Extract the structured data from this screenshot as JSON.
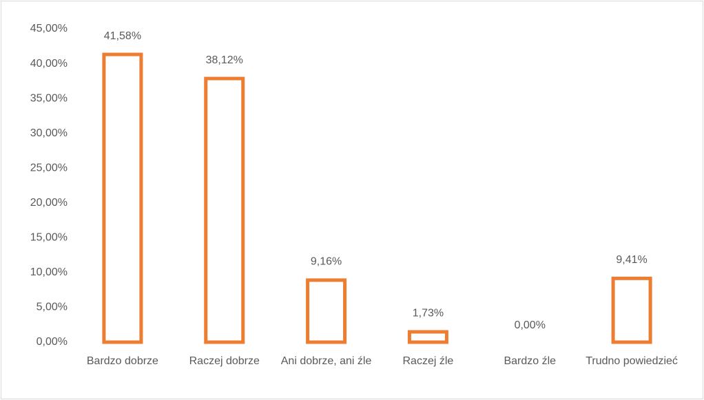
{
  "chart_data": {
    "type": "bar",
    "categories": [
      "Bardzo dobrze",
      "Raczej dobrze",
      "Ani dobrze, ani źle",
      "Raczej źle",
      "Bardzo źle",
      "Trudno powiedzieć"
    ],
    "values": [
      41.58,
      38.12,
      9.16,
      1.73,
      0,
      9.41
    ],
    "value_labels": [
      "41,58%",
      "38,12%",
      "9,16%",
      "1,73%",
      "0,00%",
      "9,41%"
    ],
    "color": "#ed7d31",
    "ylim": [
      0,
      45
    ],
    "yticks": [
      {
        "value": 0,
        "label": "0,00%"
      },
      {
        "value": 5,
        "label": "5,00%"
      },
      {
        "value": 10,
        "label": "10,00%"
      },
      {
        "value": 15,
        "label": "15,00%"
      },
      {
        "value": 20,
        "label": "20,00%"
      },
      {
        "value": 25,
        "label": "25,00%"
      },
      {
        "value": 30,
        "label": "30,00%"
      },
      {
        "value": 35,
        "label": "35,00%"
      },
      {
        "value": 40,
        "label": "40,00%"
      },
      {
        "value": 45,
        "label": "45,00%"
      }
    ],
    "grid": false
  }
}
